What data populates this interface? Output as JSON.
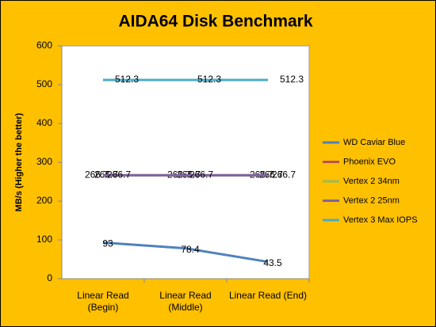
{
  "chart_data": {
    "type": "line",
    "title": "AIDA64 Disk Benchmark",
    "y_label": "MB/s (Higher the better)",
    "categories": [
      "Linear Read (Begin)",
      "Linear Read (Middle)",
      "Linear Read (End)"
    ],
    "series": [
      {
        "name": "WD Caviar  Blue",
        "color": "#4f81bd",
        "values": [
          93,
          78.4,
          43.5
        ]
      },
      {
        "name": "Phoenix EVO",
        "color": "#c0504d",
        "values": [
          266.7,
          266.7,
          266.7
        ]
      },
      {
        "name": "Vertex 2 34nm",
        "color": "#9bbb59",
        "values": [
          266.7,
          266.7,
          266.7
        ]
      },
      {
        "name": "Vertex 2 25nm",
        "color": "#8064a2",
        "values": [
          266.7,
          266.7,
          266.7
        ]
      },
      {
        "name": "Vertex 3 Max IOPS",
        "color": "#4bacc6",
        "values": [
          512.3,
          512.3,
          512.3
        ]
      }
    ],
    "ylim": [
      0,
      600
    ],
    "yticks": [
      0,
      100,
      200,
      300,
      400,
      500,
      600
    ],
    "grid": false,
    "legend": "right"
  }
}
